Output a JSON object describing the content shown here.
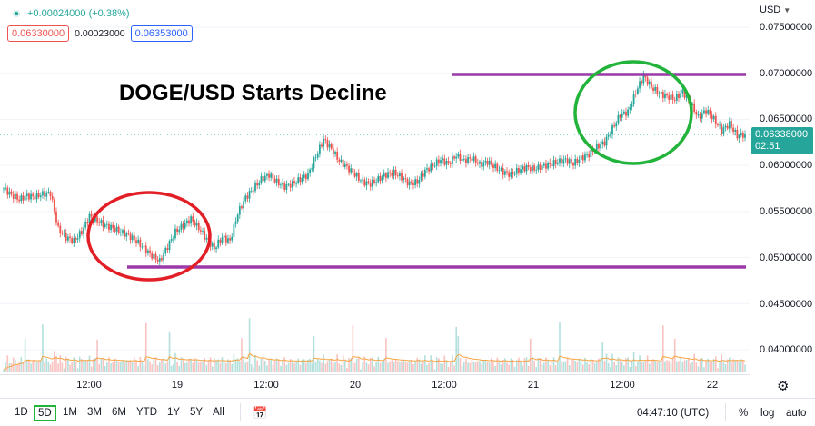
{
  "legend": {
    "change": "+0.00024000 (+0.38%)",
    "bid": "0.06330000",
    "spread": "0.00023000",
    "ask": "0.06353000"
  },
  "annotation": {
    "title": "DOGE/USD Starts Decline"
  },
  "price_axis": {
    "currency": "USD",
    "current_price": "0.06338000",
    "countdown": "02:51"
  },
  "toolbar": {
    "timeframes": [
      "1D",
      "5D",
      "1M",
      "3M",
      "6M",
      "YTD",
      "1Y",
      "5Y",
      "All"
    ],
    "active": "5D",
    "clock": "04:47:10 (UTC)",
    "percent": "%",
    "log": "log",
    "auto": "auto"
  },
  "colors": {
    "up": "#26a69a",
    "down": "#ef5350",
    "level_line": "#9c3aa8",
    "highlight_circle_high": "#22b33a",
    "highlight_circle_low": "#e21f26",
    "volume_ma": "#f7a440"
  },
  "chart_data": {
    "type": "candlestick",
    "title": "DOGE/USD Starts Decline",
    "ylim": [
      0.0375,
      0.0775
    ],
    "y_ticks": [
      "0.07500000",
      "0.07000000",
      "0.06500000",
      "0.06000000",
      "0.05500000",
      "0.05000000",
      "0.04500000",
      "0.04000000"
    ],
    "x_ticks": [
      "12:00",
      "19",
      "12:00",
      "20",
      "12:00",
      "21",
      "12:00",
      "22"
    ],
    "horizontal_levels": [
      0.0697,
      0.049
    ],
    "close_series": [
      0.0575,
      0.0568,
      0.0563,
      0.0567,
      0.0566,
      0.0569,
      0.057,
      0.0531,
      0.0522,
      0.0518,
      0.0528,
      0.0545,
      0.054,
      0.0535,
      0.0532,
      0.0528,
      0.0524,
      0.0518,
      0.051,
      0.0502,
      0.0496,
      0.0512,
      0.0528,
      0.0535,
      0.0542,
      0.0532,
      0.052,
      0.051,
      0.0522,
      0.0518,
      0.0548,
      0.0565,
      0.0575,
      0.0585,
      0.059,
      0.0582,
      0.0577,
      0.058,
      0.0585,
      0.059,
      0.061,
      0.0628,
      0.0618,
      0.0605,
      0.0598,
      0.059,
      0.0582,
      0.058,
      0.0585,
      0.059,
      0.0592,
      0.0587,
      0.058,
      0.0582,
      0.0594,
      0.06,
      0.0606,
      0.0602,
      0.0611,
      0.0605,
      0.0608,
      0.0601,
      0.0604,
      0.0598,
      0.0593,
      0.059,
      0.0595,
      0.0598,
      0.0596,
      0.0599,
      0.0601,
      0.0604,
      0.0606,
      0.0602,
      0.0608,
      0.0612,
      0.062,
      0.0625,
      0.064,
      0.0655,
      0.0658,
      0.068,
      0.0697,
      0.0685,
      0.0678,
      0.0675,
      0.0672,
      0.068,
      0.0668,
      0.0652,
      0.066,
      0.065,
      0.0638,
      0.0645,
      0.0632,
      0.0634
    ],
    "volume_note": "volume histogram with moving average at bottom"
  }
}
